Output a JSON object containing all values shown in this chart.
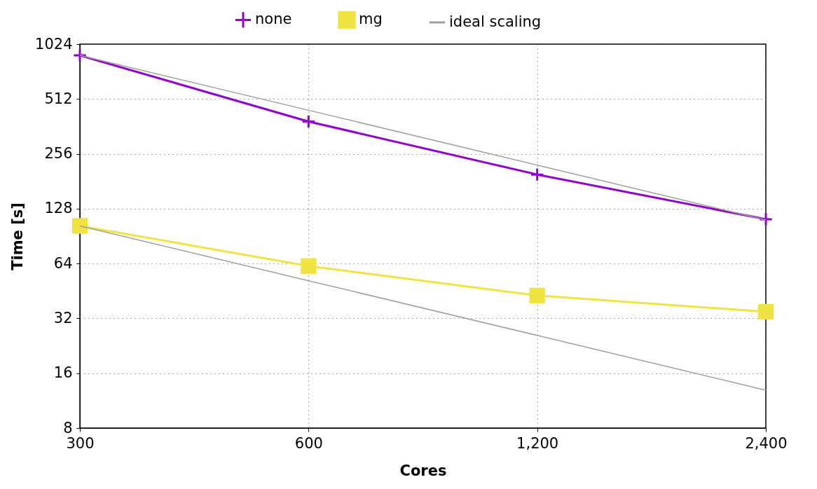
{
  "chart_data": {
    "type": "line",
    "xlabel": "Cores",
    "ylabel": "Time [s]",
    "log": "xy",
    "grid": true,
    "legend": "top",
    "line_style": "solid",
    "xlim": [
      300,
      2400
    ],
    "xticks": [
      300,
      600,
      {
        "value": 1200,
        "label": "1,200"
      },
      {
        "value": 2400,
        "label": "2,400"
      }
    ],
    "ylim": [
      8,
      1024
    ],
    "yticks": [
      8,
      16,
      32,
      64,
      128,
      256,
      512,
      1024
    ],
    "x": [
      300,
      600,
      1200,
      2400
    ],
    "series": [
      {
        "name": "none",
        "color": "#9400d3",
        "marker": "cross",
        "values": [
          888,
          385,
          197,
          112
        ]
      },
      {
        "name": "mg",
        "color": "#f0e442",
        "marker": "square",
        "values": [
          103,
          62,
          42.7,
          34.8
        ]
      },
      {
        "name": "ideal scaling",
        "color": "#a0a0a0",
        "marker": "none",
        "values": [
          888,
          444,
          222,
          111
        ]
      },
      {
        "color": "#a0a0a0",
        "marker": "none",
        "values": [
          103,
          51.5,
          25.8,
          12.9
        ]
      }
    ]
  }
}
